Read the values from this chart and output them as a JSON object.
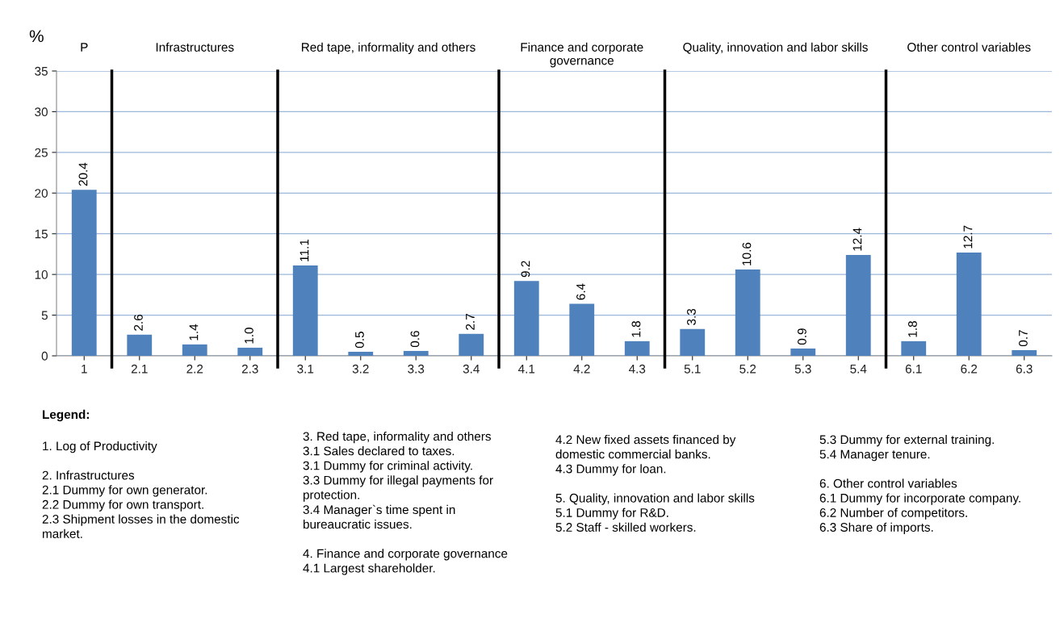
{
  "chart_data": {
    "type": "bar",
    "ylabel": "%",
    "categories": [
      "1",
      "2.1",
      "2.2",
      "2.3",
      "3.1",
      "3.2",
      "3.3",
      "3.4",
      "4.1",
      "4.2",
      "4.3",
      "5.1",
      "5.2",
      "5.3",
      "5.4",
      "6.1",
      "6.2",
      "6.3"
    ],
    "values": [
      20.4,
      2.6,
      1.4,
      1.0,
      11.1,
      0.5,
      0.6,
      2.7,
      9.2,
      6.4,
      1.8,
      3.3,
      10.6,
      0.9,
      12.4,
      1.8,
      12.7,
      0.7
    ],
    "value_labels": [
      "20.4",
      "2.6",
      "1.4",
      "1.0",
      "11.1",
      "0.5",
      "0.6",
      "2.7",
      "9.2",
      "6.4",
      "1.8",
      "3.3",
      "10.6",
      "0.9",
      "12.4",
      "1.8",
      "12.7",
      "0.7"
    ],
    "color": "#4f81bd",
    "ylim": [
      0,
      35
    ],
    "yticks": [
      0,
      5,
      10,
      15,
      20,
      25,
      30,
      35
    ],
    "grid": "y",
    "annotations": [
      "P",
      "Infrastructures",
      "Red tape, informality and others",
      "Finance and corporate\ngovernance",
      "Quality, innovation and labor skills",
      "Other control variables",
      "Legend:",
      "1. Log of Productivity\n\n2. Infrastructures\n2.1 Dummy for own generator.\n2.2 Dummy for own transport.\n2.3 Shipment losses in the domestic\nmarket.",
      "3. Red tape, informality and others\n3.1 Sales declared to taxes.\n3.1 Dummy for criminal activity.\n3.3 Dummy for illegal payments for\nprotection.\n3.4 Manager`s time spent in\nbureaucratic issues.\n\n4. Finance and corporate governance\n4.1 Largest shareholder.",
      "4.2 New fixed assets financed by\ndomestic commercial banks.\n4.3 Dummy for loan.\n\n5. Quality, innovation and labor skills\n5.1 Dummy for R&D.\n5.2 Staff - skilled workers.",
      "5.3 Dummy for external training.\n5.4 Manager tenure.\n\n6. Other control variables\n6.1 Dummy for incorporate company.\n6.2 Number of competitors.\n6.3 Share of imports."
    ]
  }
}
